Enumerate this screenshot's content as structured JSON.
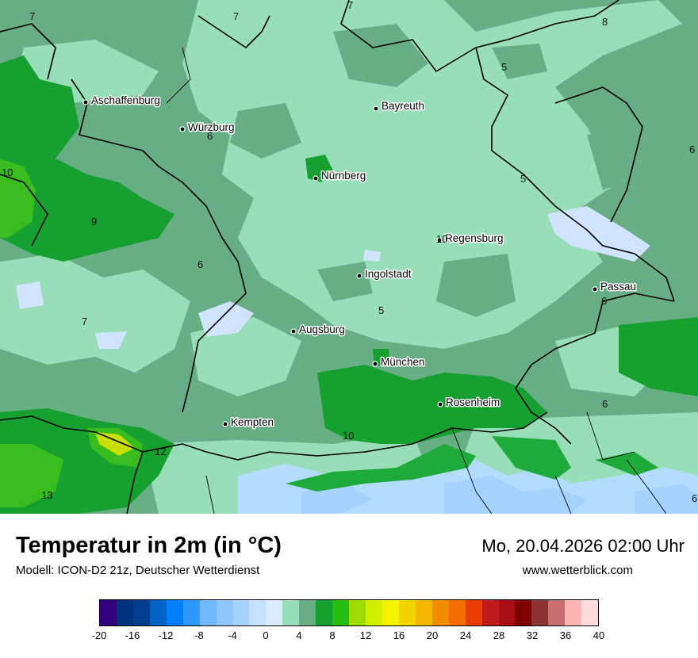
{
  "map": {
    "colors": {
      "c0": "#68ae84",
      "c2": "#98deb8",
      "c4": "#15a030",
      "c6": "#38bc1e",
      "water": "#d0e4ff",
      "snow1": "#a6d2ff",
      "snow2": "#b4dcff",
      "alps_green": "#1faa3c",
      "yellow": "#c8e000"
    },
    "cities": [
      {
        "name": "Aschaffenburg"
      },
      {
        "name": "Würzburg"
      },
      {
        "name": "Bayreuth"
      },
      {
        "name": "Nürnberg"
      },
      {
        "name": "Regensburg"
      },
      {
        "name": "Ingolstadt"
      },
      {
        "name": "Passau"
      },
      {
        "name": "Augsburg"
      },
      {
        "name": "München"
      },
      {
        "name": "Rosenheim"
      },
      {
        "name": "Kempten"
      }
    ],
    "isolabels": [
      "7",
      "7",
      "7",
      "8",
      "5",
      "6",
      "10",
      "9",
      "6",
      "7",
      "5",
      "6",
      "5",
      "10",
      "6",
      "10",
      "10",
      "13",
      "6",
      "6",
      "12"
    ]
  },
  "header": {
    "title": "Temperatur in 2m (in °C)",
    "subtitle": "Modell: ICON-D2 21z, Deutscher Wetterdienst",
    "datetime": "Mo, 20.04.2026 02:00 Uhr",
    "website": "www.wetterblick.com"
  },
  "legend": {
    "colors": [
      "#33007f",
      "#00337f",
      "#003f8e",
      "#0062c2",
      "#0080ff",
      "#2e98ff",
      "#73b9ff",
      "#8fc6ff",
      "#a6d2ff",
      "#c4e1ff",
      "#dbebff",
      "#98deb8",
      "#68ae84",
      "#15a030",
      "#23bd12",
      "#9ddc00",
      "#d1f000",
      "#f3f300",
      "#f1d400",
      "#f2b700",
      "#f28c00",
      "#f26e00",
      "#e83c00",
      "#c01b1b",
      "#a80e13",
      "#7e0000",
      "#8b3333",
      "#c76f6f",
      "#ffb4b4",
      "#ffdcdc"
    ],
    "ticks": [
      "-20",
      "-16",
      "-12",
      "-8",
      "-4",
      "0",
      "4",
      "8",
      "12",
      "16",
      "20",
      "24",
      "28",
      "32",
      "36",
      "40"
    ]
  }
}
